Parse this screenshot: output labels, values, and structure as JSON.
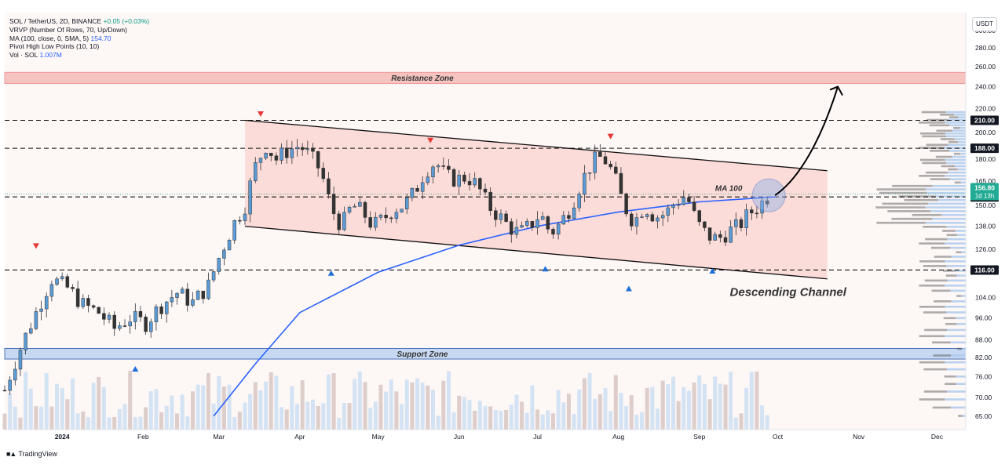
{
  "legend": {
    "symbol_line": "SOL / TetherUS, 2D, BINANCE",
    "change": "+0.05 (+0.03%)",
    "vrvp": "VRVP (Number Of Rows, 70, Up/Down)",
    "ma_label": "MA (100, close, 0, SMA, 5)",
    "ma_value": "154.70",
    "pivot": "Pivot High Low Points (10, 10)",
    "vol_label": "Vol · SOL",
    "vol_value": "1.007M"
  },
  "currency": "USDT",
  "branding": "TradingView",
  "chart_data": {
    "type": "candlestick",
    "symbol": "SOL / TetherUS",
    "timeframe": "2D",
    "exchange": "BINANCE",
    "y_axis": {
      "scale": "log",
      "ylim": [
        62,
        320
      ],
      "ticks": [
        300,
        280,
        260,
        240,
        220,
        200,
        180,
        165,
        150,
        138,
        126,
        116,
        104,
        96,
        88,
        82,
        76,
        70,
        65
      ],
      "tick_labels": [
        "300.00",
        "280.00",
        "260.00",
        "240.00",
        "220.00",
        "200.00",
        "180.00",
        "165.00",
        "150.00",
        "138.00",
        "126.00",
        "116.00",
        "104.00",
        "96.00",
        "88.00",
        "82.00",
        "76.00",
        "70.00",
        "65.00"
      ]
    },
    "x_axis": {
      "start": "2023-12-10",
      "end": "2024-12-12",
      "month_labels": [
        {
          "date": "2024-01-01",
          "label": "2024"
        },
        {
          "date": "2024-02-01",
          "label": "Feb"
        },
        {
          "date": "2024-03-01",
          "label": "Mar"
        },
        {
          "date": "2024-04-01",
          "label": "Apr"
        },
        {
          "date": "2024-05-01",
          "label": "May"
        },
        {
          "date": "2024-06-01",
          "label": "Jun"
        },
        {
          "date": "2024-07-01",
          "label": "Jul"
        },
        {
          "date": "2024-08-01",
          "label": "Aug"
        },
        {
          "date": "2024-09-01",
          "label": "Sep"
        },
        {
          "date": "2024-10-01",
          "label": "Oct"
        },
        {
          "date": "2024-11-01",
          "label": "Nov"
        },
        {
          "date": "2024-12-01",
          "label": "Dec"
        }
      ]
    },
    "closes": [
      {
        "date": "2023-12-10",
        "close": 72
      },
      {
        "date": "2023-12-16",
        "close": 85
      },
      {
        "date": "2023-12-22",
        "close": 98
      },
      {
        "date": "2023-12-28",
        "close": 112
      },
      {
        "date": "2024-01-03",
        "close": 108
      },
      {
        "date": "2024-01-09",
        "close": 101
      },
      {
        "date": "2024-01-15",
        "close": 98
      },
      {
        "date": "2024-01-21",
        "close": 92
      },
      {
        "date": "2024-01-27",
        "close": 96
      },
      {
        "date": "2024-02-02",
        "close": 94
      },
      {
        "date": "2024-02-08",
        "close": 101
      },
      {
        "date": "2024-02-14",
        "close": 106
      },
      {
        "date": "2024-02-20",
        "close": 102
      },
      {
        "date": "2024-02-26",
        "close": 109
      },
      {
        "date": "2024-03-03",
        "close": 128
      },
      {
        "date": "2024-03-07",
        "close": 140
      },
      {
        "date": "2024-03-11",
        "close": 150
      },
      {
        "date": "2024-03-15",
        "close": 175
      },
      {
        "date": "2024-03-19",
        "close": 190
      },
      {
        "date": "2024-03-23",
        "close": 180
      },
      {
        "date": "2024-03-27",
        "close": 186
      },
      {
        "date": "2024-04-01",
        "close": 190
      },
      {
        "date": "2024-04-05",
        "close": 182
      },
      {
        "date": "2024-04-09",
        "close": 172
      },
      {
        "date": "2024-04-13",
        "close": 148
      },
      {
        "date": "2024-04-17",
        "close": 138
      },
      {
        "date": "2024-04-21",
        "close": 150
      },
      {
        "date": "2024-04-25",
        "close": 146
      },
      {
        "date": "2024-04-29",
        "close": 138
      },
      {
        "date": "2024-05-03",
        "close": 142
      },
      {
        "date": "2024-05-07",
        "close": 148
      },
      {
        "date": "2024-05-11",
        "close": 150
      },
      {
        "date": "2024-05-15",
        "close": 158
      },
      {
        "date": "2024-05-19",
        "close": 172
      },
      {
        "date": "2024-05-23",
        "close": 178
      },
      {
        "date": "2024-05-27",
        "close": 168
      },
      {
        "date": "2024-05-31",
        "close": 166
      },
      {
        "date": "2024-06-04",
        "close": 168
      },
      {
        "date": "2024-06-08",
        "close": 162
      },
      {
        "date": "2024-06-12",
        "close": 150
      },
      {
        "date": "2024-06-16",
        "close": 144
      },
      {
        "date": "2024-06-20",
        "close": 138
      },
      {
        "date": "2024-06-24",
        "close": 134
      },
      {
        "date": "2024-06-28",
        "close": 138
      },
      {
        "date": "2024-07-02",
        "close": 145
      },
      {
        "date": "2024-07-06",
        "close": 134
      },
      {
        "date": "2024-07-10",
        "close": 140
      },
      {
        "date": "2024-07-14",
        "close": 150
      },
      {
        "date": "2024-07-18",
        "close": 165
      },
      {
        "date": "2024-07-22",
        "close": 178
      },
      {
        "date": "2024-07-26",
        "close": 182
      },
      {
        "date": "2024-07-30",
        "close": 170
      },
      {
        "date": "2024-08-03",
        "close": 150
      },
      {
        "date": "2024-08-07",
        "close": 140
      },
      {
        "date": "2024-08-11",
        "close": 150
      },
      {
        "date": "2024-08-15",
        "close": 143
      },
      {
        "date": "2024-08-19",
        "close": 145
      },
      {
        "date": "2024-08-23",
        "close": 152
      },
      {
        "date": "2024-08-27",
        "close": 156
      },
      {
        "date": "2024-08-31",
        "close": 140
      },
      {
        "date": "2024-09-04",
        "close": 133
      },
      {
        "date": "2024-09-08",
        "close": 131
      },
      {
        "date": "2024-09-12",
        "close": 135
      },
      {
        "date": "2024-09-16",
        "close": 138
      },
      {
        "date": "2024-09-20",
        "close": 145
      },
      {
        "date": "2024-09-24",
        "close": 150
      },
      {
        "date": "2024-09-28",
        "close": 156.8
      }
    ],
    "moving_average": {
      "name": "MA 100",
      "values": [
        {
          "date": "2024-02-28",
          "value": 65
        },
        {
          "date": "2024-03-15",
          "value": 80
        },
        {
          "date": "2024-04-01",
          "value": 98
        },
        {
          "date": "2024-05-01",
          "value": 115
        },
        {
          "date": "2024-06-01",
          "value": 128
        },
        {
          "date": "2024-07-01",
          "value": 138
        },
        {
          "date": "2024-08-01",
          "value": 146
        },
        {
          "date": "2024-09-01",
          "value": 152
        },
        {
          "date": "2024-09-30",
          "value": 155
        }
      ]
    },
    "horizontal_levels": [
      {
        "value": 210,
        "label": "210.00"
      },
      {
        "value": 188,
        "label": "188.00"
      },
      {
        "value": 155,
        "label": "155.00"
      },
      {
        "value": 116,
        "label": "116.00"
      }
    ],
    "current_price": {
      "value": 156.8,
      "label": "156.80",
      "countdown": "1d 13h"
    },
    "zones": [
      {
        "label": "Resistance Zone",
        "low": 243,
        "high": 254
      },
      {
        "label": "Support Zone",
        "low": 81.5,
        "high": 85
      }
    ],
    "channel": {
      "label": "Descending Channel",
      "upper": [
        {
          "date": "2024-03-11",
          "value": 210
        },
        {
          "date": "2024-10-20",
          "value": 172
        }
      ],
      "lower": [
        {
          "date": "2024-03-11",
          "value": 138
        },
        {
          "date": "2024-10-20",
          "value": 112
        }
      ]
    },
    "pivot_highs": [
      {
        "date": "2023-12-22",
        "value": 125
      },
      {
        "date": "2024-03-17",
        "value": 211
      },
      {
        "date": "2024-05-21",
        "value": 190
      },
      {
        "date": "2024-07-29",
        "value": 193
      }
    ],
    "pivot_lows": [
      {
        "date": "2024-01-29",
        "value": 80
      },
      {
        "date": "2024-04-13",
        "value": 117
      },
      {
        "date": "2024-07-04",
        "value": 119
      },
      {
        "date": "2024-08-05",
        "value": 110
      },
      {
        "date": "2024-09-06",
        "value": 118
      }
    ],
    "projection_arrow": [
      {
        "date": "2024-09-30",
        "value": 156
      },
      {
        "date": "2024-10-12",
        "value": 170
      },
      {
        "date": "2024-10-20",
        "value": 210
      },
      {
        "date": "2024-10-24",
        "value": 240
      }
    ],
    "colors": {
      "up": "#089981",
      "down": "#f23645",
      "ma": "#2962ff",
      "channel_fill": "#fbd5d2",
      "resistance_fill": "#f6c4c0",
      "support_fill": "#c7d9f2"
    }
  }
}
